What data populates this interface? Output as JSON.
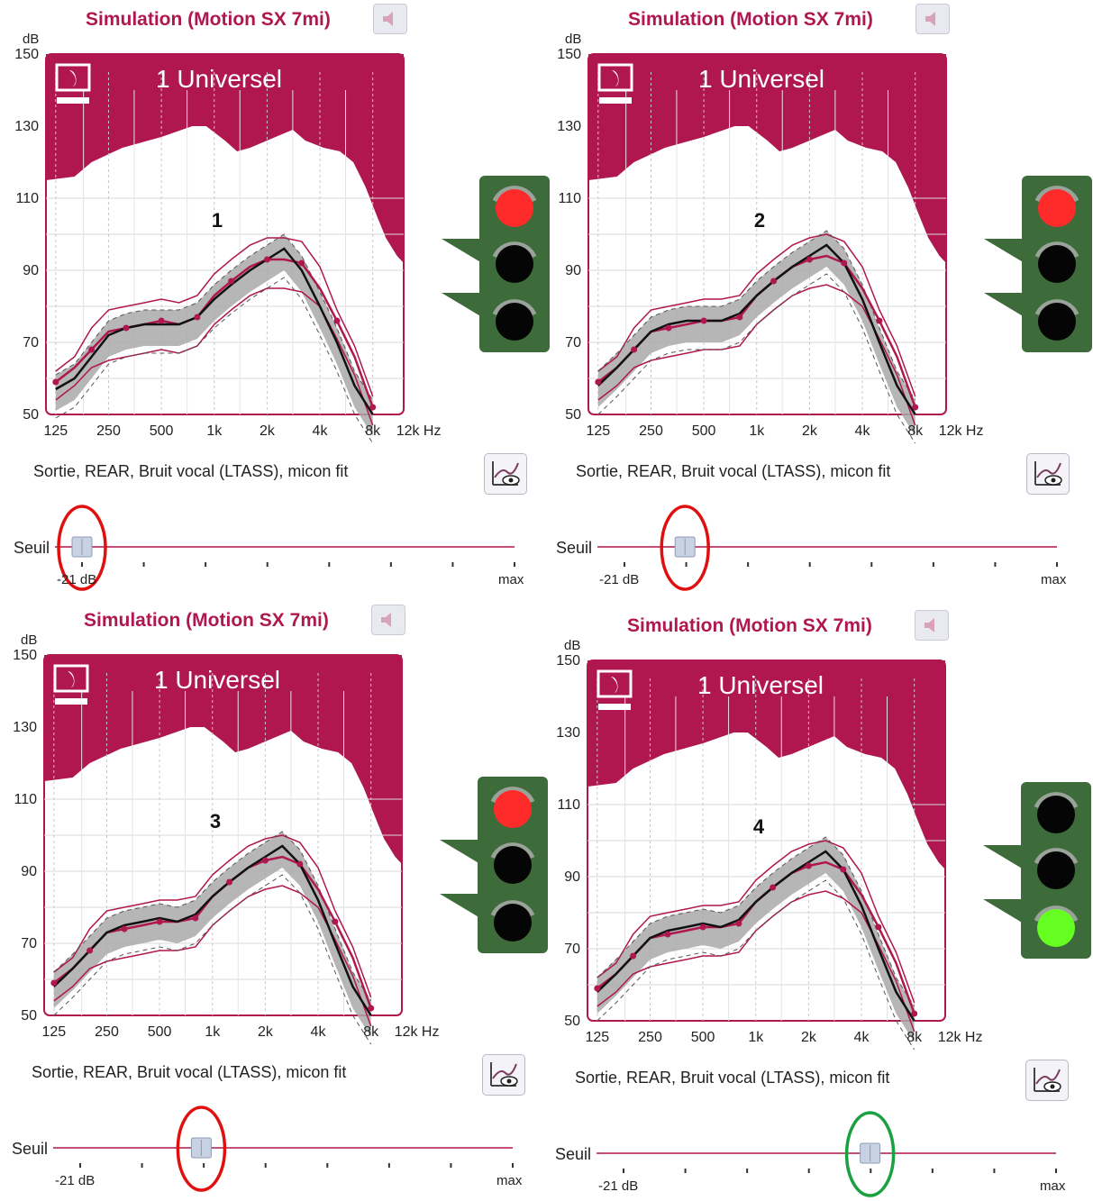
{
  "panels": [
    {
      "title": "Simulation (Motion SX 7mi)",
      "program": "1 Universel",
      "label": "1",
      "y_unit": "dB",
      "y_ticks": [
        "150",
        "130",
        "110",
        "90",
        "70",
        "50"
      ],
      "x_ticks": [
        "125",
        "250",
        "500",
        "1k",
        "2k",
        "4k",
        "8k",
        "12k Hz"
      ],
      "description": "Sortie, REAR, Bruit vocal (LTASS), micon fit",
      "slider": {
        "label": "Seuil",
        "min_label": "-21 dB",
        "max_label": "max",
        "position": 0.0
      },
      "traffic_light": {
        "active": "red"
      },
      "highlight_ring": "red"
    },
    {
      "title": "Simulation (Motion SX 7mi)",
      "program": "1 Universel",
      "label": "2",
      "y_unit": "dB",
      "y_ticks": [
        "150",
        "130",
        "110",
        "90",
        "70",
        "50"
      ],
      "x_ticks": [
        "125",
        "250",
        "500",
        "1k",
        "2k",
        "4k",
        "8k",
        "12k Hz"
      ],
      "description": "Sortie, REAR, Bruit vocal (LTASS), micon fit",
      "slider": {
        "label": "Seuil",
        "min_label": "-21 dB",
        "max_label": "max",
        "position": 0.14
      },
      "traffic_light": {
        "active": "red"
      },
      "highlight_ring": "red"
    },
    {
      "title": "Simulation (Motion SX 7mi)",
      "program": "1 Universel",
      "label": "3",
      "y_unit": "dB",
      "y_ticks": [
        "150",
        "130",
        "110",
        "90",
        "70",
        "50"
      ],
      "x_ticks": [
        "125",
        "250",
        "500",
        "1k",
        "2k",
        "4k",
        "8k",
        "12k Hz"
      ],
      "description": "Sortie, REAR, Bruit vocal (LTASS), micon fit",
      "slider": {
        "label": "Seuil",
        "min_label": "-21 dB",
        "max_label": "max",
        "position": 0.28
      },
      "traffic_light": {
        "active": "red"
      },
      "highlight_ring": "red"
    },
    {
      "title": "Simulation (Motion SX 7mi)",
      "program": "1 Universel",
      "label": "4",
      "y_unit": "dB",
      "y_ticks": [
        "150",
        "130",
        "110",
        "90",
        "70",
        "50"
      ],
      "x_ticks": [
        "125",
        "250",
        "500",
        "1k",
        "2k",
        "4k",
        "8k",
        "12k Hz"
      ],
      "description": "Sortie, REAR, Bruit vocal (LTASS), micon fit",
      "slider": {
        "label": "Seuil",
        "min_label": "-21 dB",
        "max_label": "max",
        "position": 0.57
      },
      "traffic_light": {
        "active": "green"
      },
      "highlight_ring": "green"
    }
  ],
  "colors": {
    "accent": "#b0174f",
    "light_red": "#ff2a2a",
    "light_green": "#66ff22",
    "light_body": "#3d6b3a",
    "ring_red": "#e01010",
    "ring_green": "#1aa040"
  },
  "icons": [
    "speaker-icon",
    "hearing-aid-icon",
    "curve-view-icon"
  ],
  "chart_data": [
    {
      "type": "line",
      "x_axis": "frequency (Hz, log)",
      "y_axis": "dB",
      "ylim": [
        50,
        150
      ],
      "x": [
        125,
        160,
        200,
        250,
        315,
        400,
        500,
        630,
        800,
        1000,
        1250,
        1600,
        2000,
        2500,
        3150,
        4000,
        5000,
        6300,
        8000
      ],
      "series": [
        {
          "values": [
            57,
            60,
            66,
            72,
            74,
            75,
            75,
            75,
            77,
            82,
            86,
            90,
            93,
            96,
            90,
            80,
            70,
            58,
            50
          ]
        },
        {
          "values": [
            59,
            63,
            68,
            73,
            74,
            75,
            76,
            75,
            77,
            83,
            87,
            91,
            93,
            93,
            92,
            85,
            76,
            66,
            52
          ]
        }
      ]
    },
    {
      "type": "line",
      "x_axis": "frequency (Hz, log)",
      "y_axis": "dB",
      "ylim": [
        50,
        150
      ],
      "x": [
        125,
        160,
        200,
        250,
        315,
        400,
        500,
        630,
        800,
        1000,
        1250,
        1600,
        2000,
        2500,
        3150,
        4000,
        5000,
        6300,
        8000
      ],
      "series": [
        {
          "values": [
            58,
            63,
            68,
            73,
            75,
            76,
            76,
            76,
            78,
            83,
            87,
            91,
            94,
            97,
            92,
            82,
            70,
            58,
            50
          ]
        },
        {
          "values": [
            59,
            63,
            68,
            73,
            74,
            75,
            76,
            76,
            77,
            83,
            87,
            91,
            93,
            94,
            92,
            85,
            76,
            66,
            52
          ]
        }
      ]
    },
    {
      "type": "line",
      "x_axis": "frequency (Hz, log)",
      "y_axis": "dB",
      "ylim": [
        50,
        150
      ],
      "x": [
        125,
        160,
        200,
        250,
        315,
        400,
        500,
        630,
        800,
        1000,
        1250,
        1600,
        2000,
        2500,
        3150,
        4000,
        5000,
        6300,
        8000
      ],
      "series": [
        {
          "values": [
            58,
            63,
            68,
            73,
            75,
            76,
            77,
            76,
            78,
            83,
            87,
            91,
            94,
            97,
            92,
            82,
            70,
            58,
            50
          ]
        },
        {
          "values": [
            59,
            63,
            68,
            73,
            74,
            75,
            76,
            76,
            77,
            83,
            87,
            91,
            93,
            94,
            92,
            85,
            76,
            66,
            52
          ]
        }
      ]
    },
    {
      "type": "line",
      "x_axis": "frequency (Hz, log)",
      "y_axis": "dB",
      "ylim": [
        50,
        150
      ],
      "x": [
        125,
        160,
        200,
        250,
        315,
        400,
        500,
        630,
        800,
        1000,
        1250,
        1600,
        2000,
        2500,
        3150,
        4000,
        5000,
        6300,
        8000
      ],
      "series": [
        {
          "values": [
            58,
            63,
            68,
            73,
            75,
            76,
            77,
            76,
            78,
            83,
            87,
            91,
            94,
            97,
            92,
            82,
            70,
            58,
            50
          ]
        },
        {
          "values": [
            59,
            63,
            68,
            73,
            74,
            75,
            76,
            76,
            77,
            83,
            87,
            91,
            93,
            94,
            92,
            85,
            76,
            66,
            52
          ]
        }
      ]
    }
  ]
}
